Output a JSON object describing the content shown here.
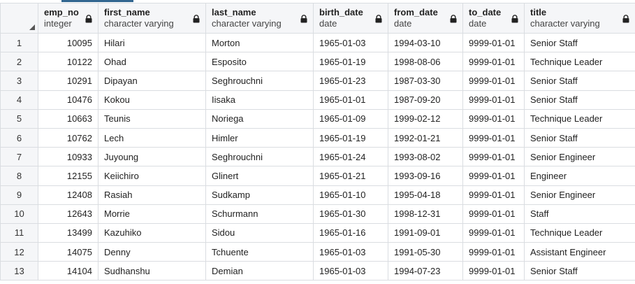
{
  "columns": [
    {
      "name": "emp_no",
      "type": "integer"
    },
    {
      "name": "first_name",
      "type": "character varying"
    },
    {
      "name": "last_name",
      "type": "character varying"
    },
    {
      "name": "birth_date",
      "type": "date"
    },
    {
      "name": "from_date",
      "type": "date"
    },
    {
      "name": "to_date",
      "type": "date"
    },
    {
      "name": "title",
      "type": "character varying"
    }
  ],
  "rows": [
    {
      "n": "1",
      "emp_no": "10095",
      "first_name": "Hilari",
      "last_name": "Morton",
      "birth_date": "1965-01-03",
      "from_date": "1994-03-10",
      "to_date": "9999-01-01",
      "title": "Senior Staff"
    },
    {
      "n": "2",
      "emp_no": "10122",
      "first_name": "Ohad",
      "last_name": "Esposito",
      "birth_date": "1965-01-19",
      "from_date": "1998-08-06",
      "to_date": "9999-01-01",
      "title": "Technique Leader"
    },
    {
      "n": "3",
      "emp_no": "10291",
      "first_name": "Dipayan",
      "last_name": "Seghrouchni",
      "birth_date": "1965-01-23",
      "from_date": "1987-03-30",
      "to_date": "9999-01-01",
      "title": "Senior Staff"
    },
    {
      "n": "4",
      "emp_no": "10476",
      "first_name": "Kokou",
      "last_name": "Iisaka",
      "birth_date": "1965-01-01",
      "from_date": "1987-09-20",
      "to_date": "9999-01-01",
      "title": "Senior Staff"
    },
    {
      "n": "5",
      "emp_no": "10663",
      "first_name": "Teunis",
      "last_name": "Noriega",
      "birth_date": "1965-01-09",
      "from_date": "1999-02-12",
      "to_date": "9999-01-01",
      "title": "Technique Leader"
    },
    {
      "n": "6",
      "emp_no": "10762",
      "first_name": "Lech",
      "last_name": "Himler",
      "birth_date": "1965-01-19",
      "from_date": "1992-01-21",
      "to_date": "9999-01-01",
      "title": "Senior Staff"
    },
    {
      "n": "7",
      "emp_no": "10933",
      "first_name": "Juyoung",
      "last_name": "Seghrouchni",
      "birth_date": "1965-01-24",
      "from_date": "1993-08-02",
      "to_date": "9999-01-01",
      "title": "Senior Engineer"
    },
    {
      "n": "8",
      "emp_no": "12155",
      "first_name": "Keiichiro",
      "last_name": "Glinert",
      "birth_date": "1965-01-21",
      "from_date": "1993-09-16",
      "to_date": "9999-01-01",
      "title": "Engineer"
    },
    {
      "n": "9",
      "emp_no": "12408",
      "first_name": "Rasiah",
      "last_name": "Sudkamp",
      "birth_date": "1965-01-10",
      "from_date": "1995-04-18",
      "to_date": "9999-01-01",
      "title": "Senior Engineer"
    },
    {
      "n": "10",
      "emp_no": "12643",
      "first_name": "Morrie",
      "last_name": "Schurmann",
      "birth_date": "1965-01-30",
      "from_date": "1998-12-31",
      "to_date": "9999-01-01",
      "title": "Staff"
    },
    {
      "n": "11",
      "emp_no": "13499",
      "first_name": "Kazuhiko",
      "last_name": "Sidou",
      "birth_date": "1965-01-16",
      "from_date": "1991-09-01",
      "to_date": "9999-01-01",
      "title": "Technique Leader"
    },
    {
      "n": "12",
      "emp_no": "14075",
      "first_name": "Denny",
      "last_name": "Tchuente",
      "birth_date": "1965-01-03",
      "from_date": "1991-05-30",
      "to_date": "9999-01-01",
      "title": "Assistant Engineer"
    },
    {
      "n": "13",
      "emp_no": "14104",
      "first_name": "Sudhanshu",
      "last_name": "Demian",
      "birth_date": "1965-01-03",
      "from_date": "1994-07-23",
      "to_date": "9999-01-01",
      "title": "Senior Staff"
    }
  ]
}
